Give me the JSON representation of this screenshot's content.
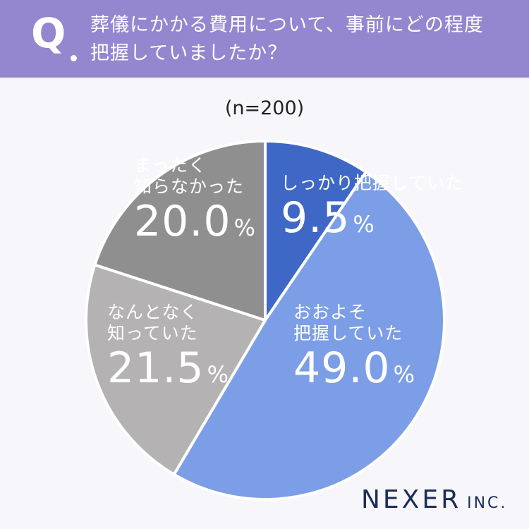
{
  "header": {
    "q_label": "Q",
    "question_line1": "葬儀にかかる費用について、事前にどの程度",
    "question_line2": "把握していましたか？"
  },
  "sample_size": "(n=200)",
  "chart_data": {
    "type": "pie",
    "title": "葬儀にかかる費用について、事前にどの程度把握していましたか？",
    "slices": [
      {
        "label_line1": "しっかり把握していた",
        "label_line2": "",
        "value": 9.5,
        "display": "9.5",
        "color": "#3f67c5",
        "text_color": "#ffffff"
      },
      {
        "label_line1": "おおよそ",
        "label_line2": "把握していた",
        "value": 49.0,
        "display": "49.0",
        "color": "#7b9ee6",
        "text_color": "#ffffff"
      },
      {
        "label_line1": "なんとなく",
        "label_line2": "知っていた",
        "value": 21.5,
        "display": "21.5",
        "color": "#b4b2b3",
        "text_color": "#ffffff"
      },
      {
        "label_line1": "まったく",
        "label_line2": "知らなかった",
        "value": 20.0,
        "display": "20.0",
        "color": "#8f8f8f",
        "text_color": "#ffffff"
      }
    ],
    "unit": "%"
  },
  "logo": {
    "name": "NEXER",
    "suffix": "INC."
  }
}
